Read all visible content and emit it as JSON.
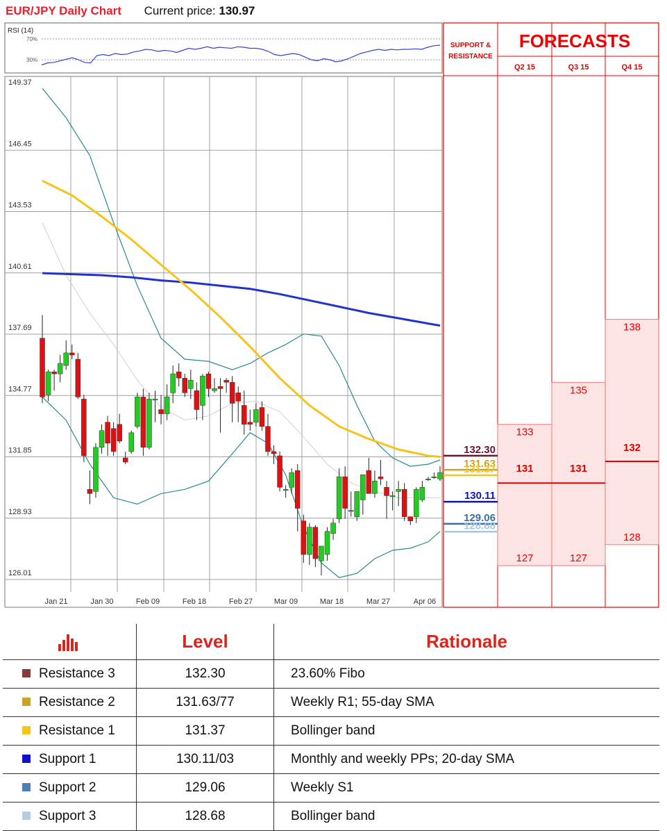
{
  "header": {
    "title": "EUR/JPY Daily Chart",
    "current_price_label": "Current price:",
    "current_price": "130.97"
  },
  "colors": {
    "title": "#e8202a",
    "up_candle": "#22cc22",
    "down_candle": "#dd1111",
    "sma_200": "#2233cc",
    "sma_55": "#f5c31a",
    "bollinger": "#2a8a8a",
    "rsi_line": "#3344cc",
    "forecast_red": "#e00000",
    "forecast_fill": "#fde4e4"
  },
  "support_resistance_header": "SUPPORT & RESISTANCE",
  "forecasts": {
    "title": "FORECASTS",
    "columns": [
      {
        "quarter": "Q2 15",
        "high": 133,
        "mid": 131,
        "low": 127
      },
      {
        "quarter": "Q3 15",
        "high": 135,
        "mid": 131,
        "low": 127
      },
      {
        "quarter": "Q4 15",
        "high": 138,
        "mid": 132,
        "low": 128
      }
    ]
  },
  "levels_panel": [
    {
      "label": "132.30",
      "value": 132.3,
      "color": "#6b1530"
    },
    {
      "label": "131.63",
      "value": 131.63,
      "color": "#c9a227"
    },
    {
      "label": "131.37",
      "value": 131.37,
      "color": "#f5c518"
    },
    {
      "label": "130.11",
      "value": 130.11,
      "color": "#1010cc"
    },
    {
      "label": "129.06",
      "value": 129.06,
      "color": "#3a6ea5"
    },
    {
      "label": "128.68",
      "value": 128.68,
      "color": "#a8c8d8"
    }
  ],
  "chart_data": {
    "type": "candlestick",
    "title": "EUR/JPY Daily Chart",
    "ylim": [
      126.01,
      149.37
    ],
    "y_ticks": [
      "149.37",
      "146.45",
      "143.53",
      "140.61",
      "137.69",
      "134.77",
      "131.85",
      "128.93",
      "126.01"
    ],
    "x_ticks": [
      "Jan 21",
      "Jan 30",
      "Feb 09",
      "Feb 18",
      "Feb 27",
      "Mar 09",
      "Mar 18",
      "Mar 27",
      "Apr 06"
    ],
    "grid": true,
    "rsi": {
      "label": "RSI (14)",
      "levels": [
        "70%",
        "30%"
      ],
      "values": [
        20,
        24,
        25,
        28,
        31,
        34,
        30,
        25,
        24,
        38,
        40,
        38,
        42,
        40,
        41,
        45,
        47,
        50,
        49,
        46,
        48,
        47,
        44,
        48,
        52,
        50,
        52,
        55,
        52,
        54,
        53,
        52,
        55,
        54,
        52,
        52,
        50,
        46,
        40,
        38,
        40,
        42,
        40,
        35,
        30,
        28,
        32,
        30,
        26,
        28,
        32,
        37,
        42,
        45,
        48,
        50,
        48,
        50,
        49,
        50,
        50,
        51,
        50,
        54,
        57,
        58
      ]
    },
    "candles": [
      [
        137.5,
        138.6,
        134.4,
        134.7
      ],
      [
        134.8,
        136.0,
        134.5,
        135.9
      ],
      [
        135.9,
        136.0,
        135.0,
        135.8
      ],
      [
        135.8,
        136.7,
        135.4,
        136.3
      ],
      [
        136.2,
        137.4,
        136.0,
        136.8
      ],
      [
        136.8,
        137.2,
        136.5,
        136.7
      ],
      [
        136.5,
        136.8,
        134.6,
        134.7
      ],
      [
        134.6,
        134.8,
        131.6,
        131.9
      ],
      [
        130.3,
        131.2,
        129.6,
        130.1
      ],
      [
        130.2,
        132.5,
        129.9,
        132.3
      ],
      [
        132.3,
        133.4,
        132.0,
        133.1
      ],
      [
        133.5,
        133.8,
        131.9,
        132.5
      ],
      [
        133.2,
        133.5,
        131.9,
        132.1
      ],
      [
        133.4,
        133.9,
        132.5,
        132.6
      ],
      [
        131.8,
        132.1,
        131.5,
        131.6
      ],
      [
        132.1,
        133.1,
        132.0,
        133.0
      ],
      [
        133.3,
        134.9,
        133.2,
        134.7
      ],
      [
        134.7,
        135.1,
        131.9,
        132.3
      ],
      [
        132.3,
        134.9,
        132.2,
        134.6
      ],
      [
        134.6,
        135.0,
        133.5,
        134.6
      ],
      [
        134.1,
        134.8,
        133.4,
        133.9
      ],
      [
        133.9,
        135.3,
        133.6,
        134.7
      ],
      [
        134.9,
        136.2,
        134.4,
        135.8
      ],
      [
        135.9,
        136.3,
        135.2,
        135.6
      ],
      [
        135.6,
        135.8,
        134.7,
        134.9
      ],
      [
        135.1,
        136.0,
        134.6,
        135.5
      ],
      [
        135.0,
        135.4,
        133.6,
        134.1
      ],
      [
        134.3,
        135.8,
        133.6,
        135.7
      ],
      [
        135.8,
        135.9,
        134.7,
        135.1
      ],
      [
        135.0,
        135.6,
        134.9,
        135.1
      ],
      [
        135.2,
        135.6,
        133.0,
        135.1
      ],
      [
        135.5,
        135.6,
        134.9,
        135.4
      ],
      [
        135.4,
        135.7,
        133.5,
        134.4
      ],
      [
        134.9,
        135.2,
        133.5,
        134.5
      ],
      [
        134.3,
        135.0,
        132.9,
        133.4
      ],
      [
        133.5,
        134.1,
        133.1,
        133.4
      ],
      [
        133.5,
        134.4,
        133.3,
        134.1
      ],
      [
        134.2,
        134.5,
        133.1,
        133.3
      ],
      [
        133.3,
        133.9,
        131.9,
        132.1
      ],
      [
        132.1,
        132.4,
        131.5,
        132.0
      ],
      [
        131.9,
        132.1,
        130.2,
        130.4
      ],
      [
        130.3,
        130.5,
        129.9,
        130.3
      ],
      [
        130.4,
        131.3,
        130.1,
        131.1
      ],
      [
        131.2,
        131.5,
        128.3,
        129.4
      ],
      [
        128.8,
        129.1,
        126.8,
        127.2
      ],
      [
        127.2,
        128.7,
        126.7,
        128.5
      ],
      [
        128.5,
        128.6,
        126.6,
        127.0
      ],
      [
        126.9,
        127.6,
        126.2,
        127.6
      ],
      [
        127.2,
        128.5,
        126.9,
        128.3
      ],
      [
        128.2,
        128.9,
        127.9,
        128.7
      ],
      [
        128.9,
        131.3,
        128.7,
        130.9
      ],
      [
        130.9,
        131.4,
        128.9,
        129.4
      ],
      [
        129.3,
        130.2,
        129.0,
        129.3
      ],
      [
        129.0,
        130.2,
        128.8,
        130.2
      ],
      [
        129.8,
        131.0,
        129.1,
        131.0
      ],
      [
        131.2,
        131.8,
        130.1,
        130.1
      ],
      [
        130.1,
        131.2,
        129.9,
        130.7
      ],
      [
        130.9,
        131.7,
        130.5,
        130.8
      ],
      [
        130.4,
        130.7,
        128.9,
        130.0
      ],
      [
        130.0,
        130.2,
        129.3,
        130.0
      ],
      [
        130.2,
        130.7,
        129.5,
        130.3
      ],
      [
        130.3,
        130.6,
        128.8,
        129.0
      ],
      [
        129.0,
        129.0,
        128.6,
        128.8
      ],
      [
        129.0,
        130.4,
        128.7,
        130.3
      ],
      [
        129.8,
        130.7,
        129.7,
        130.4
      ],
      [
        130.8,
        130.9,
        130.7,
        130.8
      ],
      [
        130.9,
        131.1,
        130.8,
        130.9
      ],
      [
        130.8,
        131.4,
        130.7,
        131.1
      ]
    ],
    "overlays": {
      "sma_200": [
        [
          0,
          140.6
        ],
        [
          5,
          140.55
        ],
        [
          10,
          140.5
        ],
        [
          15,
          140.4
        ],
        [
          20,
          140.25
        ],
        [
          25,
          140.15
        ],
        [
          30,
          140.0
        ],
        [
          35,
          139.85
        ],
        [
          40,
          139.6
        ],
        [
          45,
          139.3
        ],
        [
          50,
          139.0
        ],
        [
          55,
          138.7
        ],
        [
          60,
          138.45
        ],
        [
          65,
          138.2
        ],
        [
          67,
          138.1
        ]
      ],
      "sma_55": [
        [
          0,
          145.0
        ],
        [
          5,
          144.3
        ],
        [
          10,
          143.3
        ],
        [
          15,
          142.2
        ],
        [
          20,
          141.0
        ],
        [
          25,
          139.8
        ],
        [
          30,
          138.5
        ],
        [
          35,
          137.1
        ],
        [
          40,
          135.6
        ],
        [
          45,
          134.3
        ],
        [
          50,
          133.3
        ],
        [
          55,
          132.7
        ],
        [
          60,
          132.2
        ],
        [
          65,
          131.9
        ],
        [
          67,
          131.85
        ]
      ],
      "bb_upper": [
        [
          0,
          149.4
        ],
        [
          4,
          148.0
        ],
        [
          8,
          146.2
        ],
        [
          12,
          143.0
        ],
        [
          16,
          140.0
        ],
        [
          20,
          137.5
        ],
        [
          24,
          136.5
        ],
        [
          28,
          136.4
        ],
        [
          32,
          136.0
        ],
        [
          35,
          136.3
        ],
        [
          38,
          136.8
        ],
        [
          41,
          137.2
        ],
        [
          44,
          137.7
        ],
        [
          47,
          137.6
        ],
        [
          50,
          136.2
        ],
        [
          53,
          134.3
        ],
        [
          56,
          132.6
        ],
        [
          59,
          131.8
        ],
        [
          62,
          131.4
        ],
        [
          65,
          131.5
        ],
        [
          67,
          131.7
        ]
      ],
      "bb_mid": [
        [
          0,
          143.0
        ],
        [
          4,
          140.5
        ],
        [
          8,
          138.7
        ],
        [
          12,
          137.2
        ],
        [
          16,
          135.5
        ],
        [
          20,
          134.2
        ],
        [
          24,
          133.6
        ],
        [
          28,
          133.8
        ],
        [
          32,
          134.4
        ],
        [
          36,
          134.5
        ],
        [
          40,
          134.0
        ],
        [
          44,
          132.8
        ],
        [
          48,
          131.5
        ],
        [
          52,
          130.6
        ],
        [
          56,
          130.2
        ],
        [
          60,
          129.9
        ],
        [
          64,
          129.9
        ],
        [
          67,
          129.9
        ]
      ],
      "bb_lower": [
        [
          0,
          134.7
        ],
        [
          4,
          133.6
        ],
        [
          8,
          131.5
        ],
        [
          12,
          129.9
        ],
        [
          16,
          129.6
        ],
        [
          20,
          130.1
        ],
        [
          24,
          130.3
        ],
        [
          28,
          130.7
        ],
        [
          32,
          132.0
        ],
        [
          35,
          133.0
        ],
        [
          38,
          132.5
        ],
        [
          41,
          131.0
        ],
        [
          44,
          128.5
        ],
        [
          47,
          126.8
        ],
        [
          50,
          126.1
        ],
        [
          53,
          126.3
        ],
        [
          56,
          127.0
        ],
        [
          59,
          127.4
        ],
        [
          62,
          127.5
        ],
        [
          65,
          127.8
        ],
        [
          67,
          128.3
        ]
      ]
    }
  },
  "levels_table": {
    "header_level": "Level",
    "header_rationale": "Rationale",
    "rows": [
      {
        "name": "Resistance 3",
        "level": "132.30",
        "rationale": "23.60% Fibo",
        "color": "#8b3a3a"
      },
      {
        "name": "Resistance 2",
        "level": "131.63/77",
        "rationale": "Weekly R1; 55-day SMA",
        "color": "#c9a227"
      },
      {
        "name": "Resistance 1",
        "level": "131.37",
        "rationale": "Bollinger band",
        "color": "#f5c518"
      },
      {
        "name": "Support 1",
        "level": "130.11/03",
        "rationale": "Monthly and weekly PPs; 20-day SMA",
        "color": "#1010cc"
      },
      {
        "name": "Support 2",
        "level": "129.06",
        "rationale": "Weekly S1",
        "color": "#4a7fb8"
      },
      {
        "name": "Support 3",
        "level": "128.68",
        "rationale": "Bollinger band",
        "color": "#b8cce4"
      }
    ]
  }
}
